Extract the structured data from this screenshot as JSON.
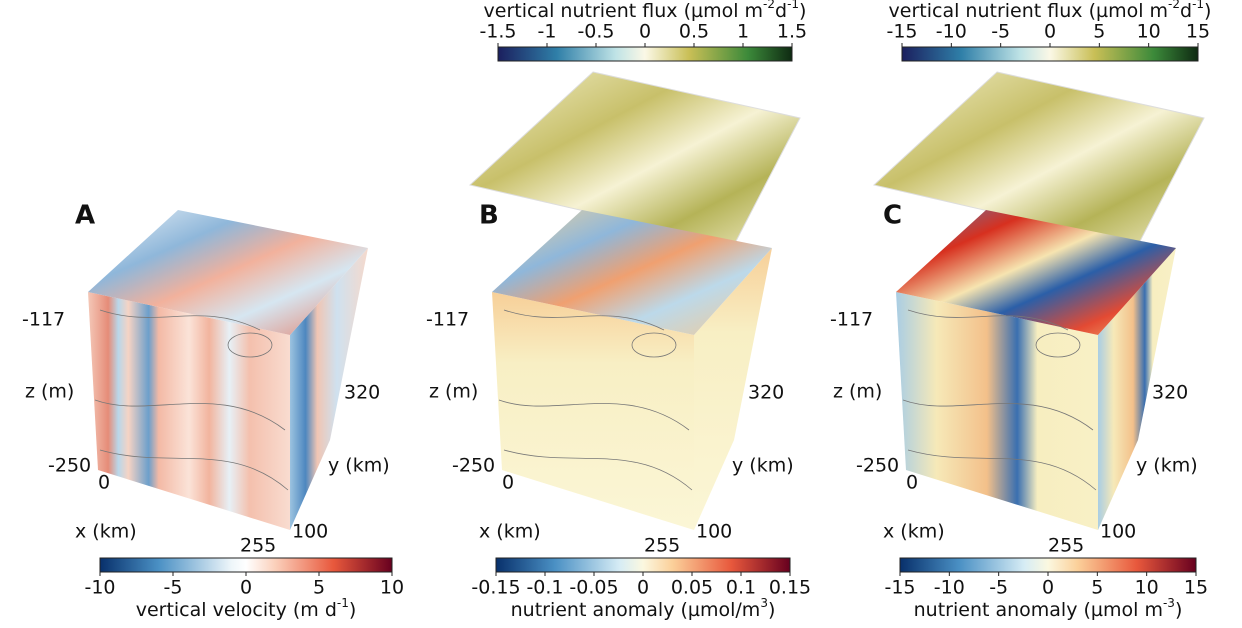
{
  "panels": [
    {
      "label": "A",
      "axes": {
        "z_top": "-117",
        "z_bottom": "-250",
        "z_title": "z (m)",
        "x_start": "0",
        "x_end": "255",
        "x_title": "x (km)",
        "y_start": "100",
        "y_end": "320",
        "y_title": "y (km)"
      },
      "bottom_colorbar": {
        "ticks": [
          "-10",
          "-5",
          "0",
          "5",
          "10"
        ],
        "title": [
          {
            "text": "vertical velocity (m d"
          },
          {
            "sup": "-1"
          },
          {
            "text": ")"
          }
        ]
      }
    },
    {
      "label": "B",
      "axes": {
        "z_top": "-117",
        "z_bottom": "-250",
        "z_title": "z (m)",
        "x_start": "0",
        "x_end": "255",
        "x_title": "x (km)",
        "y_start": "100",
        "y_end": "320",
        "y_title": "y (km)"
      },
      "top_colorbar": {
        "ticks": [
          "-1.5",
          "-1",
          "-0.5",
          "0",
          "0.5",
          "1",
          "1.5"
        ],
        "title": [
          {
            "text": "vertical nutrient flux (µmol m"
          },
          {
            "sup": "-2"
          },
          {
            "text": "d"
          },
          {
            "sup": "-1"
          },
          {
            "text": ")"
          }
        ]
      },
      "bottom_colorbar": {
        "ticks": [
          "-0.15",
          "-0.1",
          "-0.05",
          "0",
          "0.05",
          "0.1",
          "0.15"
        ],
        "title": [
          {
            "text": "nutrient anomaly (µmol/m"
          },
          {
            "sup": "3"
          },
          {
            "text": ")"
          }
        ]
      }
    },
    {
      "label": "C",
      "axes": {
        "z_top": "-117",
        "z_bottom": "-250",
        "z_title": "z (m)",
        "x_start": "0",
        "x_end": "255",
        "x_title": "x (km)",
        "y_start": "100",
        "y_end": "320",
        "y_title": "y (km)"
      },
      "top_colorbar": {
        "ticks": [
          "-15",
          "-10",
          "-5",
          "0",
          "5",
          "10",
          "15"
        ],
        "title": [
          {
            "text": "vertical nutrient flux (µmol m"
          },
          {
            "sup": "-2"
          },
          {
            "text": "d"
          },
          {
            "sup": "-1"
          },
          {
            "text": ")"
          }
        ]
      },
      "bottom_colorbar": {
        "ticks": [
          "-15",
          "-10",
          "-5",
          "0",
          "5",
          "10",
          "15"
        ],
        "title": [
          {
            "text": "nutrient anomaly (µmol m"
          },
          {
            "sup": "-3"
          },
          {
            "text": ")"
          }
        ]
      }
    }
  ]
}
